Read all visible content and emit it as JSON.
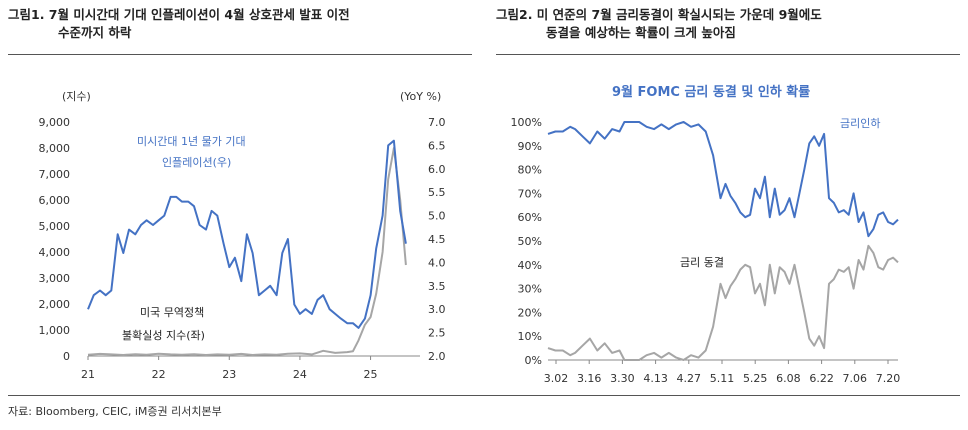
{
  "panel1": {
    "title_line1": "그림1.  7월 미시간대 기대 인플레이션이 4월 상호관세 발표 이전",
    "title_line2": "수준까지 하락"
  },
  "panel2": {
    "title_line1": "그림2.  미 연준의 7월 금리동결이 확실시되는 가운데 9월에도",
    "title_line2": "동결을 예상하는 확률이 크게 높아짐"
  },
  "source": "자료: Bloomberg, CEIC, iM증권 리서치본부",
  "colors": {
    "blue": "#4472C4",
    "gray": "#A6A6A6",
    "axis": "#888888"
  },
  "chart_data": [
    {
      "type": "line",
      "left_axis_label": "(지수)",
      "right_axis_label": "(YoY %)",
      "left_ticks": [
        "9,000",
        "8,000",
        "7,000",
        "6,000",
        "5,000",
        "4,000",
        "3,000",
        "2,000",
        "1,000",
        "0"
      ],
      "right_ticks": [
        "7.0",
        "6.5",
        "6.0",
        "5.5",
        "5.0",
        "4.5",
        "4.0",
        "3.5",
        "3.0",
        "2.5",
        "2.0"
      ],
      "x_ticks": [
        "21",
        "22",
        "23",
        "24",
        "25"
      ],
      "ylim_left": [
        0,
        9000
      ],
      "ylim_right": [
        2.0,
        7.0
      ],
      "x_range": [
        2021.0,
        2025.7
      ],
      "annotations": {
        "blue_line1": "미시간대 1년 물가 기대",
        "blue_line2": "인플레이션(우)",
        "gray_line1": "미국 무역정책",
        "gray_line2": "불확실성 지수(좌)"
      },
      "series": [
        {
          "axis": "right",
          "color": "#4472C4",
          "x": [
            2021.0,
            2021.08,
            2021.17,
            2021.25,
            2021.33,
            2021.42,
            2021.5,
            2021.58,
            2021.67,
            2021.75,
            2021.83,
            2021.92,
            2022.0,
            2022.08,
            2022.17,
            2022.25,
            2022.33,
            2022.42,
            2022.5,
            2022.58,
            2022.67,
            2022.75,
            2022.83,
            2022.92,
            2023.0,
            2023.08,
            2023.17,
            2023.25,
            2023.33,
            2023.42,
            2023.5,
            2023.58,
            2023.67,
            2023.75,
            2023.83,
            2023.92,
            2024.0,
            2024.08,
            2024.17,
            2024.25,
            2024.33,
            2024.42,
            2024.5,
            2024.58,
            2024.67,
            2024.75,
            2024.83,
            2024.92,
            2025.0,
            2025.08,
            2025.17,
            2025.25,
            2025.33,
            2025.42,
            2025.5
          ],
          "y": [
            3.0,
            3.3,
            3.4,
            3.3,
            3.4,
            4.6,
            4.2,
            4.7,
            4.6,
            4.8,
            4.9,
            4.8,
            4.9,
            5.0,
            5.4,
            5.4,
            5.3,
            5.3,
            5.2,
            4.8,
            4.7,
            5.1,
            5.0,
            4.4,
            3.9,
            4.1,
            3.6,
            4.6,
            4.2,
            3.3,
            3.4,
            3.5,
            3.3,
            4.2,
            4.5,
            3.1,
            2.9,
            3.0,
            2.9,
            3.2,
            3.3,
            3.0,
            2.9,
            2.8,
            2.7,
            2.7,
            2.6,
            2.8,
            3.3,
            4.3,
            5.0,
            6.5,
            6.6,
            5.1,
            4.4
          ]
        },
        {
          "axis": "left",
          "color": "#A6A6A6",
          "x": [
            2021.0,
            2021.17,
            2021.33,
            2021.5,
            2021.67,
            2021.83,
            2022.0,
            2022.17,
            2022.33,
            2022.5,
            2022.67,
            2022.83,
            2023.0,
            2023.17,
            2023.33,
            2023.5,
            2023.67,
            2023.83,
            2024.0,
            2024.17,
            2024.33,
            2024.5,
            2024.67,
            2024.75,
            2024.83,
            2024.92,
            2025.0,
            2025.08,
            2025.17,
            2025.25,
            2025.33,
            2025.42,
            2025.5
          ],
          "y": [
            50,
            80,
            60,
            40,
            70,
            50,
            90,
            60,
            50,
            70,
            40,
            60,
            50,
            80,
            40,
            60,
            50,
            90,
            100,
            60,
            200,
            120,
            150,
            180,
            600,
            1200,
            1500,
            2400,
            4000,
            6800,
            8000,
            6000,
            3500
          ]
        }
      ]
    },
    {
      "type": "line",
      "title": "9월 FOMC 금리 동결 및 인하 확률",
      "y_ticks": [
        "100%",
        "90%",
        "80%",
        "70%",
        "60%",
        "50%",
        "40%",
        "30%",
        "20%",
        "10%",
        "0%"
      ],
      "x_ticks": [
        "3.02",
        "3.16",
        "3.30",
        "4.13",
        "4.27",
        "5.11",
        "5.25",
        "6.08",
        "6.22",
        "7.06",
        "7.20"
      ],
      "ylim": [
        0,
        100
      ],
      "x_range": [
        0,
        142
      ],
      "annotations": {
        "cut": "금리인하",
        "hold": "금리 동결"
      },
      "series": [
        {
          "name": "금리인하",
          "color": "#4472C4",
          "x": [
            0,
            3,
            6,
            9,
            11,
            14,
            17,
            20,
            23,
            26,
            29,
            31,
            34,
            37,
            40,
            43,
            46,
            49,
            52,
            55,
            58,
            61,
            64,
            67,
            70,
            72,
            74,
            76,
            78,
            80,
            82,
            84,
            86,
            88,
            90,
            92,
            94,
            96,
            98,
            100,
            102,
            104,
            106,
            108,
            110,
            112,
            114,
            116,
            118,
            120,
            122,
            124,
            126,
            128,
            130,
            132,
            134,
            136,
            138,
            140,
            142
          ],
          "y": [
            95,
            96,
            96,
            98,
            97,
            94,
            91,
            96,
            93,
            97,
            96,
            100,
            100,
            100,
            98,
            97,
            99,
            97,
            99,
            100,
            98,
            99,
            96,
            86,
            68,
            74,
            69,
            66,
            62,
            60,
            61,
            72,
            68,
            77,
            60,
            72,
            61,
            63,
            68,
            60,
            70,
            80,
            91,
            94,
            90,
            95,
            68,
            66,
            62,
            63,
            61,
            70,
            58,
            62,
            52,
            55,
            61,
            62,
            58,
            57,
            59
          ]
        },
        {
          "name": "금리 동결",
          "color": "#A6A6A6",
          "x": [
            0,
            3,
            6,
            9,
            11,
            14,
            17,
            20,
            23,
            26,
            29,
            31,
            34,
            37,
            40,
            43,
            46,
            49,
            52,
            55,
            58,
            61,
            64,
            67,
            70,
            72,
            74,
            76,
            78,
            80,
            82,
            84,
            86,
            88,
            90,
            92,
            94,
            96,
            98,
            100,
            102,
            104,
            106,
            108,
            110,
            112,
            114,
            116,
            118,
            120,
            122,
            124,
            126,
            128,
            130,
            132,
            134,
            136,
            138,
            140,
            142
          ],
          "y": [
            5,
            4,
            4,
            2,
            3,
            6,
            9,
            4,
            7,
            3,
            4,
            0,
            0,
            0,
            2,
            3,
            1,
            3,
            1,
            0,
            2,
            1,
            4,
            14,
            32,
            26,
            31,
            34,
            38,
            40,
            39,
            28,
            32,
            23,
            40,
            28,
            39,
            37,
            32,
            40,
            30,
            20,
            9,
            6,
            10,
            5,
            32,
            34,
            38,
            37,
            39,
            30,
            42,
            38,
            48,
            45,
            39,
            38,
            42,
            43,
            41
          ]
        }
      ]
    }
  ]
}
